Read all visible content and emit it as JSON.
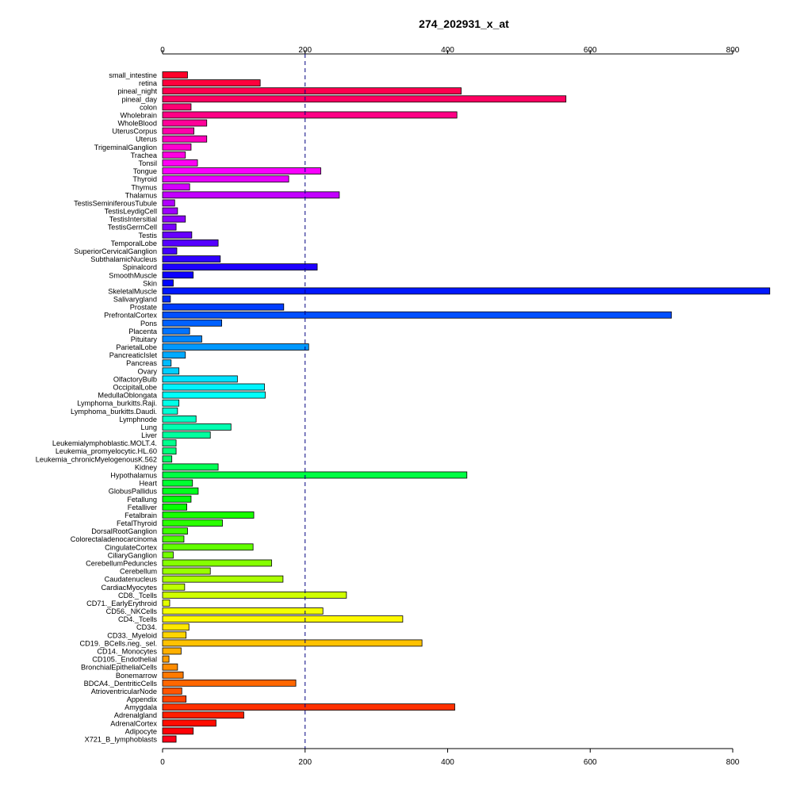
{
  "chart_data": {
    "type": "bar",
    "orientation": "horizontal",
    "title": "274_202931_x_at",
    "xlabel": "",
    "ylabel": "",
    "xlim": [
      0,
      800
    ],
    "x_ticks": [
      0,
      200,
      400,
      600,
      800
    ],
    "x_tick_labels": [
      "0",
      "200",
      "400",
      "600",
      "800"
    ],
    "axes_position": [
      "top",
      "bottom"
    ],
    "reference_line": 200,
    "grid": false,
    "legend": "none",
    "categories": [
      "small_intestine",
      "retina",
      "pineal_night",
      "pineal_day",
      "colon",
      "Wholebrain",
      "WholeBlood",
      "UterusCorpus",
      "Uterus",
      "TrigeminalGanglion",
      "Trachea",
      "Tonsil",
      "Tongue",
      "Thyroid",
      "Thymus",
      "Thalamus",
      "TestisSeminiferousTubule",
      "TestisLeydigCell",
      "TestisIntersitial",
      "TestisGermCell",
      "Testis",
      "TemporalLobe",
      "SuperiorCervicalGanglion",
      "SubthalamicNucleus",
      "Spinalcord",
      "SmoothMuscle",
      "Skin",
      "SkeletalMuscle",
      "Salivarygland",
      "Prostate",
      "PrefrontalCortex",
      "Pons",
      "Placenta",
      "Pituitary",
      "ParietalLobe",
      "PancreaticIslet",
      "Pancreas",
      "Ovary",
      "OlfactoryBulb",
      "OccipitalLobe",
      "MedullaOblongata",
      "Lymphoma_burkitts.Raji.",
      "Lymphoma_burkitts.Daudi.",
      "Lymphnode",
      "Lung",
      "Liver",
      "Leukemialymphoblastic.MOLT.4.",
      "Leukemia_promyelocytic.HL.60",
      "Leukemia_chronicMyelogenousK.562",
      "Kidney",
      "Hypothalamus",
      "Heart",
      "GlobusPallidus",
      "Fetallung",
      "Fetalliver",
      "Fetalbrain",
      "FetalThyroid",
      "DorsalRootGanglion",
      "Colorectaladenocarcinoma",
      "CingulateCortex",
      "CiliaryGanglion",
      "CerebellumPeduncles",
      "Cerebellum",
      "Caudatenucleus",
      "CardiacMyocytes",
      "CD8._Tcells",
      "CD71._EarlyErythroid",
      "CD56._NKCells",
      "CD4._Tcells",
      "CD34.",
      "CD33._Myeloid",
      "CD19._BCells.neg._sel.",
      "CD14._Monocytes",
      "CD105._Endothelial",
      "BronchialEpithelialCells",
      "Bonemarrow",
      "BDCA4._DentriticCells",
      "AtrioventricularNode",
      "Appendix",
      "Amygdala",
      "Adrenalgland",
      "AdrenalCortex",
      "Adipocyte",
      "X721_B_lymphoblasts"
    ],
    "values": [
      35,
      137,
      419,
      566,
      40,
      413,
      62,
      44,
      62,
      40,
      32,
      49,
      222,
      177,
      38,
      248,
      17,
      21,
      32,
      19,
      41,
      78,
      20,
      81,
      217,
      43,
      15,
      852,
      11,
      170,
      714,
      83,
      38,
      55,
      205,
      32,
      12,
      23,
      105,
      143,
      144,
      23,
      21,
      47,
      96,
      67,
      19,
      19,
      13,
      78,
      427,
      42,
      50,
      40,
      34,
      128,
      84,
      35,
      30,
      127,
      15,
      153,
      67,
      169,
      31,
      258,
      10,
      225,
      337,
      37,
      33,
      364,
      26,
      9,
      21,
      29,
      187,
      27,
      33,
      410,
      114,
      75,
      43,
      19
    ]
  }
}
